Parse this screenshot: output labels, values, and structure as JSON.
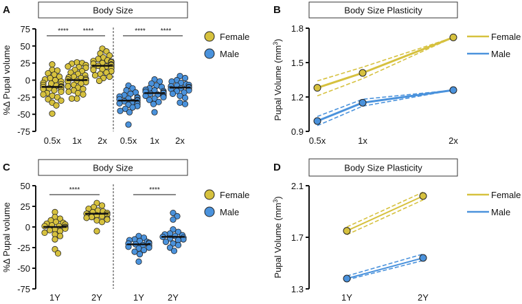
{
  "figure": {
    "panels": [
      "A",
      "B",
      "C",
      "D"
    ]
  },
  "colors": {
    "female": "#d6c13e",
    "male": "#4a92dc",
    "outline": "#222222"
  },
  "chart_data": [
    {
      "panel": "A",
      "type": "scatter",
      "subtype": "beeswarm",
      "title": "Body Size",
      "ylabel": "%Δ Pupal volume",
      "ylim": [
        -75,
        75
      ],
      "yticks": [
        75,
        50,
        25,
        0,
        -25,
        -50,
        -75
      ],
      "categories": [
        "0.5x",
        "1x",
        "2x",
        "0.5x",
        "1x",
        "2x"
      ],
      "legend": [
        "Female",
        "Male"
      ],
      "legend_position": "right",
      "significance": [
        {
          "groups": [
            0,
            1
          ],
          "label": "****"
        },
        {
          "groups": [
            1,
            2
          ],
          "label": "****"
        },
        {
          "groups": [
            3,
            4
          ],
          "label": "****"
        },
        {
          "groups": [
            4,
            5
          ],
          "label": "****"
        }
      ],
      "groups": [
        {
          "sex": "Female",
          "category": "0.5x",
          "median": -10,
          "values": [
            23,
            15,
            14,
            10,
            8,
            5,
            3,
            1,
            0,
            -2,
            -4,
            -5,
            -6,
            -7,
            -8,
            -9,
            -10,
            -10,
            -11,
            -12,
            -13,
            -14,
            -15,
            -17,
            -19,
            -21,
            -23,
            -25,
            -28,
            -30,
            -33,
            -37,
            -49
          ]
        },
        {
          "sex": "Female",
          "category": "1x",
          "median": 0,
          "values": [
            26,
            25,
            24,
            22,
            20,
            19,
            18,
            15,
            13,
            11,
            9,
            7,
            5,
            4,
            3,
            2,
            1,
            0,
            0,
            -1,
            -2,
            -3,
            -5,
            -7,
            -9,
            -11,
            -13,
            -15,
            -17,
            -19,
            -21,
            -27,
            -27
          ]
        },
        {
          "sex": "Female",
          "category": "2x",
          "median": 21,
          "values": [
            46,
            42,
            39,
            36,
            33,
            31,
            29,
            28,
            27,
            26,
            25,
            24,
            23,
            22,
            22,
            21,
            20,
            19,
            18,
            17,
            16,
            15,
            13,
            11,
            9,
            7,
            5,
            3,
            -1
          ]
        },
        {
          "sex": "Male",
          "category": "0.5x",
          "median": -30,
          "values": [
            -8,
            -12,
            -15,
            -18,
            -20,
            -22,
            -24,
            -25,
            -26,
            -27,
            -28,
            -29,
            -30,
            -31,
            -32,
            -33,
            -34,
            -35,
            -36,
            -38,
            -40,
            -42,
            -45,
            -47,
            -65
          ]
        },
        {
          "sex": "Male",
          "category": "1x",
          "median": -19,
          "values": [
            1,
            -2,
            -5,
            -8,
            -10,
            -12,
            -14,
            -15,
            -16,
            -17,
            -18,
            -19,
            -20,
            -21,
            -22,
            -23,
            -24,
            -25,
            -27,
            -29,
            -32,
            -35,
            -47
          ]
        },
        {
          "sex": "Male",
          "category": "2x",
          "median": -11,
          "values": [
            6,
            3,
            0,
            -2,
            -4,
            -6,
            -7,
            -8,
            -9,
            -10,
            -11,
            -12,
            -13,
            -14,
            -15,
            -16,
            -18,
            -20,
            -23,
            -26,
            -33,
            -35
          ]
        }
      ]
    },
    {
      "panel": "B",
      "type": "line",
      "title": "Body Size Plasticity",
      "ylabel": "Pupal Volume (mm",
      "ylabel_sup": "3",
      "ylabel_end": ")",
      "ylim": [
        0.9,
        1.8
      ],
      "yticks": [
        1.8,
        1.5,
        1.2,
        0.9
      ],
      "x": [
        0.5,
        1,
        2
      ],
      "xticklabels": [
        "0.5x",
        "1x",
        "2x"
      ],
      "legend_position": "right",
      "series": [
        {
          "name": "Female",
          "values": [
            1.28,
            1.41,
            1.72
          ],
          "upper": [
            1.34,
            1.46,
            1.72
          ],
          "lower": [
            1.21,
            1.36,
            1.72
          ]
        },
        {
          "name": "Male",
          "values": [
            0.99,
            1.15,
            1.26
          ],
          "upper": [
            1.03,
            1.18,
            1.26
          ],
          "lower": [
            0.95,
            1.12,
            1.26
          ]
        }
      ]
    },
    {
      "panel": "C",
      "type": "scatter",
      "subtype": "beeswarm",
      "title": "Body Size",
      "ylabel": "%Δ Pupal volume",
      "ylim": [
        -75,
        50
      ],
      "yticks": [
        50,
        25,
        0,
        -25,
        -50,
        -75
      ],
      "categories": [
        "1Y",
        "2Y",
        "1Y",
        "2Y"
      ],
      "legend": [
        "Female",
        "Male"
      ],
      "legend_position": "right",
      "significance": [
        {
          "groups": [
            0,
            1
          ],
          "label": "****"
        },
        {
          "groups": [
            2,
            3
          ],
          "label": "****"
        }
      ],
      "groups": [
        {
          "sex": "Female",
          "category": "1Y",
          "median": 0,
          "values": [
            18,
            12,
            10,
            8,
            6,
            5,
            4,
            3,
            2,
            1,
            1,
            0,
            0,
            -1,
            -2,
            -3,
            -4,
            -5,
            -7,
            -9,
            -11,
            -15,
            -27,
            -32
          ]
        },
        {
          "sex": "Female",
          "category": "2Y",
          "median": 16,
          "values": [
            29,
            26,
            24,
            22,
            20,
            19,
            18,
            17,
            16,
            16,
            15,
            14,
            13,
            12,
            11,
            10,
            9,
            8,
            6,
            -5
          ]
        },
        {
          "sex": "Male",
          "category": "1Y",
          "median": -21,
          "values": [
            -11,
            -13,
            -15,
            -16,
            -17,
            -18,
            -19,
            -20,
            -20,
            -21,
            -22,
            -23,
            -24,
            -25,
            -26,
            -28,
            -30,
            -33,
            -42
          ]
        },
        {
          "sex": "Male",
          "category": "2Y",
          "median": -12,
          "values": [
            17,
            13,
            9,
            -3,
            -6,
            -8,
            -9,
            -10,
            -11,
            -12,
            -13,
            -14,
            -15,
            -16,
            -18,
            -20,
            -22,
            -25,
            -29
          ]
        }
      ]
    },
    {
      "panel": "D",
      "type": "line",
      "title": "Body Size Plasticity",
      "ylabel": "Pupal Volume (mm",
      "ylabel_sup": "3",
      "ylabel_end": ")",
      "ylim": [
        1.3,
        2.1
      ],
      "yticks": [
        2.1,
        1.7,
        1.3
      ],
      "x": [
        1,
        2
      ],
      "xticklabels": [
        "1Y",
        "2Y"
      ],
      "legend_position": "right",
      "series": [
        {
          "name": "Female",
          "values": [
            1.75,
            2.02
          ],
          "upper": [
            1.78,
            2.05
          ],
          "lower": [
            1.72,
            1.99
          ]
        },
        {
          "name": "Male",
          "values": [
            1.38,
            1.54
          ],
          "upper": [
            1.4,
            1.57
          ],
          "lower": [
            1.37,
            1.52
          ]
        }
      ]
    }
  ]
}
